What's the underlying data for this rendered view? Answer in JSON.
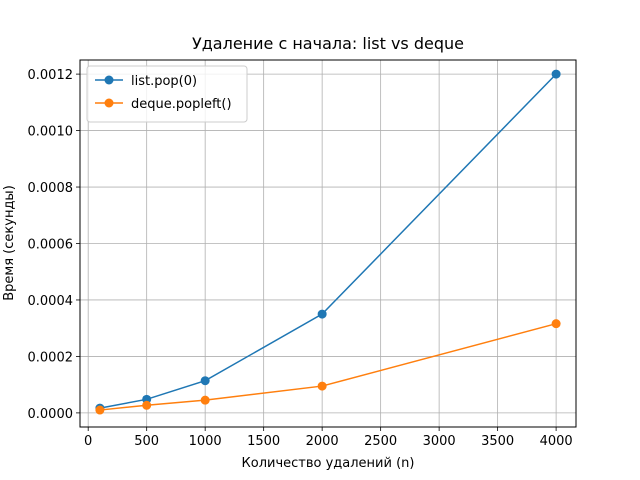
{
  "chart_data": {
    "type": "line",
    "title": "Удаление с начала: list vs deque",
    "xlabel": "Количество удалений (n)",
    "ylabel": "Время (секунды)",
    "x": [
      100,
      500,
      1000,
      2000,
      4000
    ],
    "xlim": [
      -70,
      4170
    ],
    "ylim": [
      -5e-05,
      0.00125
    ],
    "xticks": [
      0,
      500,
      1000,
      1500,
      2000,
      2500,
      3000,
      3500,
      4000
    ],
    "xtick_labels": [
      "0",
      "500",
      "1000",
      "1500",
      "2000",
      "2500",
      "3000",
      "3500",
      "4000"
    ],
    "yticks": [
      0,
      0.0002,
      0.0004,
      0.0006,
      0.0008,
      0.001,
      0.0012
    ],
    "ytick_labels": [
      "0.0000",
      "0.0002",
      "0.0004",
      "0.0006",
      "0.0008",
      "0.0010",
      "0.0012"
    ],
    "grid": true,
    "legend_position": "top-left",
    "series": [
      {
        "name": "list.pop(0)",
        "color": "#1f77b4",
        "marker": "circle",
        "values": [
          1.7e-05,
          4.8e-05,
          0.000114,
          0.00035,
          0.0012
        ]
      },
      {
        "name": "deque.popleft()",
        "color": "#ff7f0e",
        "marker": "circle",
        "values": [
          1e-05,
          2.7e-05,
          4.5e-05,
          9.5e-05,
          0.000316
        ]
      }
    ]
  }
}
